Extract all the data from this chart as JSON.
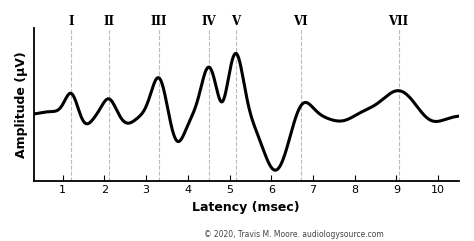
{
  "title": "",
  "xlabel": "Latency (msec)",
  "ylabel": "Amplitude (μV)",
  "xlim": [
    0.3,
    10.5
  ],
  "ylim": [
    -0.85,
    1.1
  ],
  "xticks": [
    1,
    2,
    3,
    4,
    5,
    6,
    7,
    8,
    9,
    10
  ],
  "roman_labels": [
    "I",
    "II",
    "III",
    "IV",
    "V",
    "VI",
    "VII"
  ],
  "roman_x": [
    1.2,
    2.1,
    3.3,
    4.5,
    5.15,
    6.7,
    9.05
  ],
  "dashed_x": [
    1.2,
    2.1,
    3.3,
    4.5,
    5.15,
    6.7,
    9.05
  ],
  "copyright": "© 2020, Travis M. Moore. audiologysource.com",
  "line_color": "#000000",
  "line_width": 2.2,
  "background_color": "#ffffff",
  "dashed_color": "#bbbbbb",
  "font_color": "#000000"
}
